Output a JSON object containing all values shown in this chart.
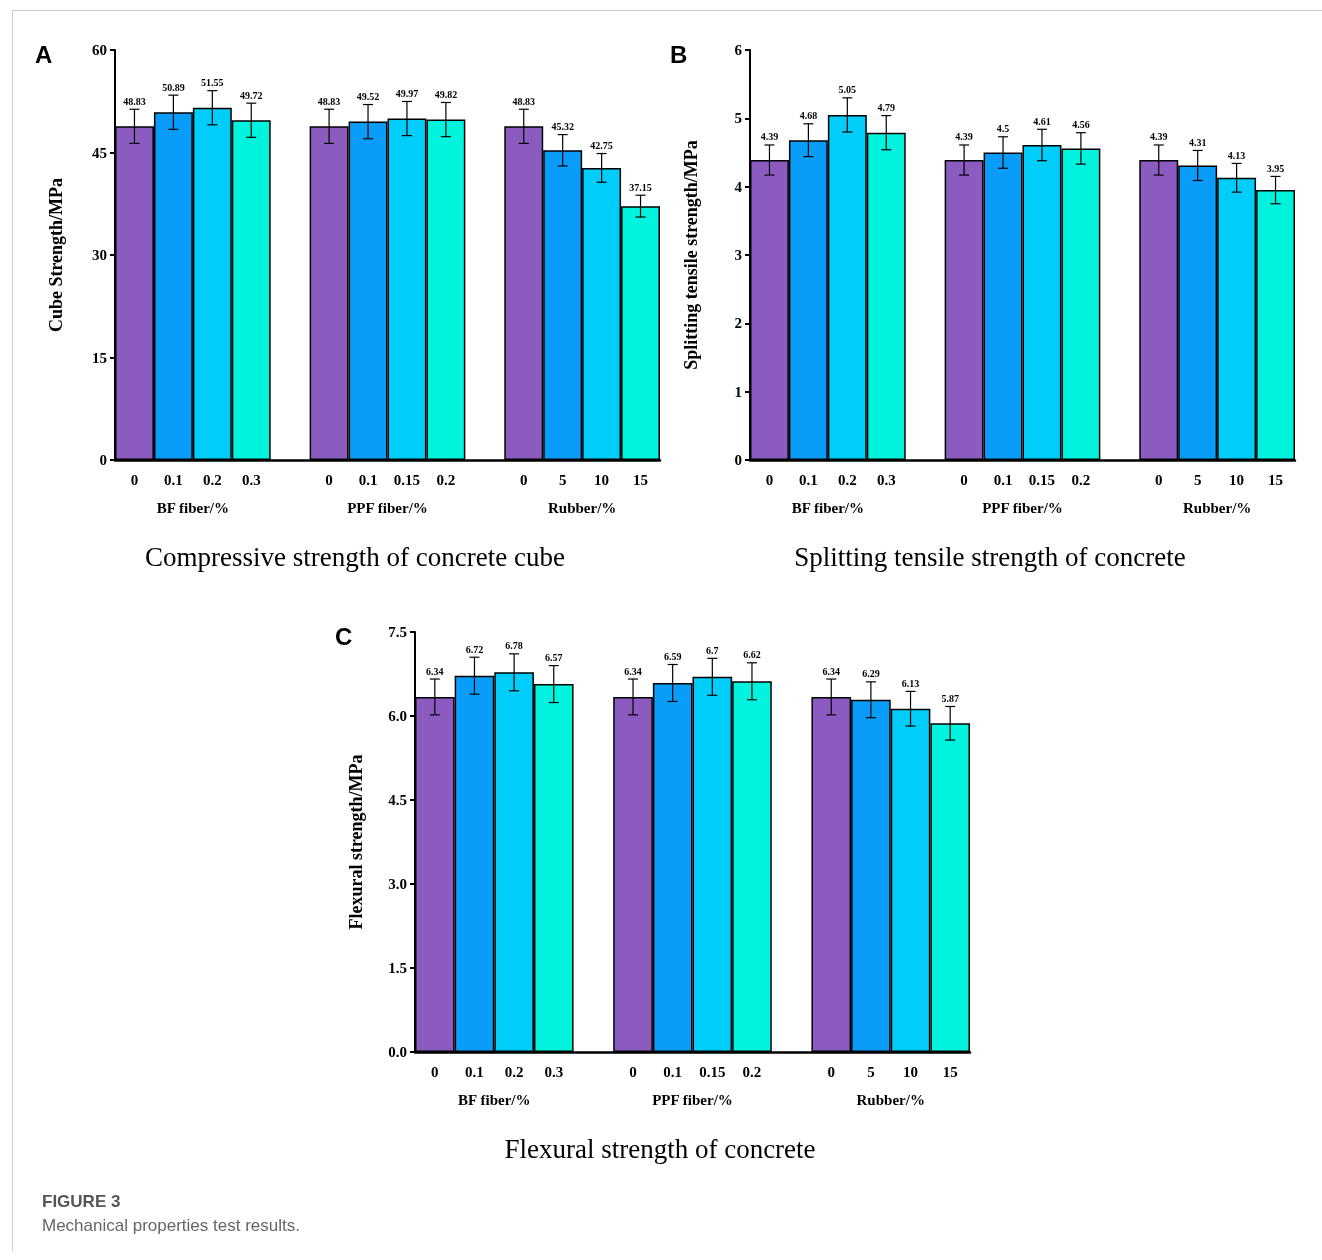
{
  "chart_data": [
    {
      "type": "bar",
      "title": "Compressive strength of concrete cube",
      "ylabel": "Cube Strength/MPa",
      "categories": [
        "0",
        "0.1",
        "0.2",
        "0.3",
        null,
        "0",
        "0.1",
        "0.15",
        "0.2",
        null,
        "0",
        "5",
        "10",
        "15"
      ],
      "values": [
        48.83,
        50.89,
        51.55,
        49.72,
        null,
        48.83,
        49.52,
        49.97,
        49.82,
        null,
        48.83,
        45.32,
        42.75,
        37.15
      ],
      "errors": [
        2.5,
        2.5,
        2.5,
        2.5,
        null,
        2.5,
        2.5,
        2.5,
        2.5,
        null,
        2.5,
        2.3,
        2.1,
        1.6
      ],
      "colors": [
        "#8c5bbf",
        "#0a9cf9",
        "#00cdf9",
        "#00f3dc",
        null,
        "#8c5bbf",
        "#0a9cf9",
        "#00cdf9",
        "#00f3dc",
        null,
        "#8c5bbf",
        "#0a9cf9",
        "#00cdf9",
        "#00f3dc"
      ],
      "ylim": [
        0,
        60
      ],
      "yticks": [
        0,
        15,
        30,
        45,
        60
      ],
      "data_labels": true,
      "annotations": [
        "A",
        "BF fiber/%",
        "PPF fiber/%",
        "Rubber/%"
      ]
    },
    {
      "type": "bar",
      "title": "Splitting tensile strength of concrete",
      "ylabel": "Splitting tensile strength/MPa",
      "categories": [
        "0",
        "0.1",
        "0.2",
        "0.3",
        null,
        "0",
        "0.1",
        "0.15",
        "0.2",
        null,
        "0",
        "5",
        "10",
        "15"
      ],
      "values": [
        4.39,
        4.68,
        5.05,
        4.79,
        null,
        4.39,
        4.5,
        4.61,
        4.56,
        null,
        4.39,
        4.31,
        4.13,
        3.95
      ],
      "errors": [
        0.22,
        0.24,
        0.25,
        0.25,
        null,
        0.22,
        0.23,
        0.23,
        0.23,
        null,
        0.22,
        0.22,
        0.21,
        0.2
      ],
      "colors": [
        "#8c5bbf",
        "#0a9cf9",
        "#00cdf9",
        "#00f3dc",
        null,
        "#8c5bbf",
        "#0a9cf9",
        "#00cdf9",
        "#00f3dc",
        null,
        "#8c5bbf",
        "#0a9cf9",
        "#00cdf9",
        "#00f3dc"
      ],
      "ylim": [
        0,
        6
      ],
      "yticks": [
        0,
        1,
        2,
        3,
        4,
        5,
        6
      ],
      "data_labels": true,
      "annotations": [
        "B",
        "BF fiber/%",
        "PPF fiber/%",
        "Rubber/%"
      ]
    },
    {
      "type": "bar",
      "title": "Flexural strength of concrete",
      "ylabel": "Flexural strength/MPa",
      "categories": [
        "0",
        "0.1",
        "0.2",
        "0.3",
        null,
        "0",
        "0.1",
        "0.15",
        "0.2",
        null,
        "0",
        "5",
        "10",
        "15"
      ],
      "values": [
        6.34,
        6.72,
        6.78,
        6.57,
        null,
        6.34,
        6.59,
        6.7,
        6.62,
        null,
        6.34,
        6.29,
        6.13,
        5.87
      ],
      "errors": [
        0.32,
        0.33,
        0.33,
        0.33,
        null,
        0.32,
        0.33,
        0.33,
        0.33,
        null,
        0.32,
        0.32,
        0.31,
        0.3
      ],
      "colors": [
        "#8c5bbf",
        "#0a9cf9",
        "#00cdf9",
        "#00f3dc",
        null,
        "#8c5bbf",
        "#0a9cf9",
        "#00cdf9",
        "#00f3dc",
        null,
        "#8c5bbf",
        "#0a9cf9",
        "#00cdf9",
        "#00f3dc"
      ],
      "ylim": [
        0,
        7.5
      ],
      "yticks": [
        {
          "value": 0,
          "label": "0.0"
        },
        1.5,
        {
          "value": 3,
          "label": "3.0"
        },
        4.5,
        {
          "value": 6,
          "label": "6.0"
        },
        7.5
      ],
      "data_labels": true,
      "annotations": [
        "C",
        "BF fiber/%",
        "PPF fiber/%",
        "Rubber/%"
      ]
    },
    {
      "type": "other",
      "title": "FIGURE 3",
      "subtitle": "Mechanical properties test results."
    }
  ]
}
